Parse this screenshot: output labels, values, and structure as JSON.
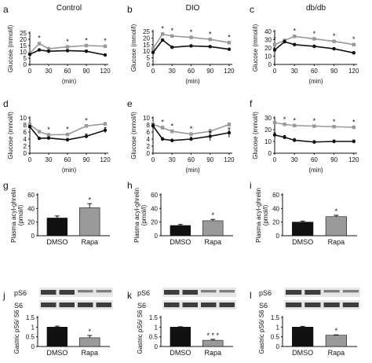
{
  "colors": {
    "black_series": "#111111",
    "gray_series": "#999999",
    "bar_black": "#111111",
    "bar_gray": "#9a9a9a",
    "axis": "#111111"
  },
  "chart_data": [
    {
      "panel": "a",
      "type": "line",
      "title": "Control",
      "ylabel": "Glucose (mmol/l)",
      "xlabel": "(min)",
      "x": [
        0,
        15,
        30,
        60,
        90,
        120
      ],
      "xticks": [
        0,
        30,
        60,
        90,
        120
      ],
      "xlim": [
        0,
        125
      ],
      "ylim": [
        0,
        25
      ],
      "yticks": [
        0,
        5,
        10,
        15,
        20,
        25
      ],
      "series": [
        {
          "color": "gray",
          "values": [
            9,
            16.5,
            12.5,
            14,
            15,
            14.5
          ],
          "err": [
            1,
            1.2,
            1,
            1,
            1,
            1
          ]
        },
        {
          "color": "black",
          "values": [
            8,
            11.5,
            10.5,
            11,
            10.5,
            7.5
          ],
          "err": [
            0.6,
            0.8,
            0.6,
            0.6,
            0.6,
            0.8
          ]
        }
      ],
      "stars": [
        {
          "x": 15,
          "label": "*"
        },
        {
          "x": 60,
          "label": "*"
        },
        {
          "x": 90,
          "label": "*"
        },
        {
          "x": 120,
          "label": "*"
        }
      ]
    },
    {
      "panel": "b",
      "type": "line",
      "title": "DIO",
      "ylabel": "Glucose (mmol/l)",
      "xlabel": "(min)",
      "x": [
        0,
        15,
        30,
        60,
        90,
        120
      ],
      "xticks": [
        0,
        30,
        60,
        90,
        120
      ],
      "xlim": [
        0,
        125
      ],
      "ylim": [
        0,
        25
      ],
      "yticks": [
        0,
        5,
        10,
        15,
        20,
        25
      ],
      "series": [
        {
          "color": "gray",
          "values": [
            12,
            23,
            21.5,
            20.5,
            19,
            16.5
          ],
          "err": [
            1,
            1,
            1,
            1,
            1,
            1
          ]
        },
        {
          "color": "black",
          "values": [
            9,
            18.5,
            13,
            14,
            13.5,
            11.5
          ],
          "err": [
            0.8,
            0.8,
            0.7,
            0.7,
            0.7,
            0.7
          ]
        }
      ],
      "stars": [
        {
          "x": 15,
          "label": "*"
        },
        {
          "x": 30,
          "label": "*"
        },
        {
          "x": 60,
          "label": "*"
        },
        {
          "x": 90,
          "label": "*"
        },
        {
          "x": 120,
          "label": "*"
        }
      ]
    },
    {
      "panel": "c",
      "type": "line",
      "title": "db/db",
      "ylabel": "Glucose (mmol/l)",
      "xlabel": "(min)",
      "x": [
        0,
        15,
        30,
        60,
        90,
        120
      ],
      "xticks": [
        0,
        30,
        60,
        90,
        120
      ],
      "xlim": [
        0,
        125
      ],
      "ylim": [
        0,
        40
      ],
      "yticks": [
        0,
        10,
        20,
        30,
        40
      ],
      "series": [
        {
          "color": "gray",
          "values": [
            24,
            29,
            34,
            31,
            28,
            24
          ],
          "err": [
            1.5,
            1.5,
            1.5,
            1.5,
            1.5,
            1.5
          ]
        },
        {
          "color": "black",
          "values": [
            17.5,
            27.5,
            24,
            22,
            19,
            14
          ],
          "err": [
            1.5,
            2,
            1.5,
            1.5,
            1.5,
            1.5
          ]
        }
      ],
      "stars": [
        {
          "x": 0,
          "label": "*"
        },
        {
          "x": 30,
          "label": "*"
        },
        {
          "x": 60,
          "label": "*"
        },
        {
          "x": 90,
          "label": "*"
        },
        {
          "x": 120,
          "label": "*"
        }
      ]
    },
    {
      "panel": "d",
      "type": "line",
      "title": "",
      "ylabel": "Glucose (mmol/l)",
      "xlabel": "(min)",
      "x": [
        0,
        15,
        30,
        60,
        90,
        120
      ],
      "xticks": [
        0,
        30,
        60,
        90,
        120
      ],
      "xlim": [
        0,
        125
      ],
      "ylim": [
        0,
        10
      ],
      "yticks": [
        0,
        2,
        4,
        6,
        8,
        10
      ],
      "series": [
        {
          "color": "gray",
          "values": [
            8.1,
            6.1,
            5.2,
            5.3,
            7.7,
            8.3
          ],
          "err": [
            0.4,
            0.4,
            0.4,
            0.4,
            0.4,
            0.4
          ]
        },
        {
          "color": "black",
          "values": [
            7.5,
            4.2,
            4.3,
            3.8,
            4.8,
            6.5
          ],
          "err": [
            0.4,
            0.3,
            0.3,
            0.4,
            0.6,
            0.7
          ]
        }
      ],
      "stars": [
        {
          "x": 30,
          "label": "*"
        },
        {
          "x": 60,
          "label": "*"
        },
        {
          "x": 90,
          "label": "*"
        }
      ]
    },
    {
      "panel": "e",
      "type": "line",
      "title": "",
      "ylabel": "Glucose (mmol/l)",
      "xlabel": "(min)",
      "x": [
        0,
        15,
        30,
        60,
        90,
        120
      ],
      "xticks": [
        0,
        30,
        60,
        90,
        120
      ],
      "xlim": [
        0,
        125
      ],
      "ylim": [
        0,
        10
      ],
      "yticks": [
        0,
        2,
        4,
        6,
        8,
        10
      ],
      "series": [
        {
          "color": "gray",
          "values": [
            8.2,
            7.2,
            6.2,
            5.4,
            6.2,
            8.1
          ],
          "err": [
            0.8,
            0.5,
            0.4,
            0.4,
            0.6,
            0.5
          ]
        },
        {
          "color": "black",
          "values": [
            7.7,
            4.0,
            3.6,
            4.0,
            4.8,
            5.8
          ],
          "err": [
            0.6,
            0.4,
            0.4,
            0.5,
            1.3,
            1.3
          ]
        }
      ],
      "stars": [
        {
          "x": 15,
          "label": "*"
        },
        {
          "x": 30,
          "label": "*"
        },
        {
          "x": 60,
          "label": "*"
        }
      ]
    },
    {
      "panel": "f",
      "type": "line",
      "title": "",
      "ylabel": "Glucose (mmol/l)",
      "xlabel": "(min)",
      "x": [
        0,
        15,
        30,
        60,
        90,
        120
      ],
      "xticks": [
        0,
        30,
        60,
        90,
        120
      ],
      "xlim": [
        0,
        125
      ],
      "ylim": [
        0,
        30
      ],
      "yticks": [
        0,
        10,
        20,
        30
      ],
      "series": [
        {
          "color": "gray",
          "values": [
            26,
            24.5,
            23.5,
            23,
            22.5,
            22
          ],
          "err": [
            1,
            1,
            1,
            1,
            1,
            1
          ]
        },
        {
          "color": "black",
          "values": [
            15.5,
            13.5,
            11,
            9.5,
            10,
            10
          ],
          "err": [
            1.8,
            1.5,
            1.5,
            1.2,
            1.2,
            1.2
          ]
        }
      ],
      "stars": [
        {
          "x": 15,
          "label": "*"
        },
        {
          "x": 30,
          "label": "*"
        },
        {
          "x": 60,
          "label": "*"
        },
        {
          "x": 90,
          "label": "*"
        },
        {
          "x": 120,
          "label": "*"
        }
      ]
    },
    {
      "panel": "g",
      "type": "bar",
      "ylabel": "Plasma acyl-ghrelin (pmol/l)",
      "categories": [
        "DMSO",
        "Rapa"
      ],
      "values": [
        26,
        41
      ],
      "err": [
        3,
        6
      ],
      "ylim": [
        0,
        60
      ],
      "yticks": [
        0,
        20,
        40,
        60
      ],
      "stars": [
        "",
        "*"
      ]
    },
    {
      "panel": "h",
      "type": "bar",
      "ylabel": "Plasma acyl-ghrelin (pmol/l)",
      "categories": [
        "DMSO",
        "Rapa"
      ],
      "values": [
        15,
        22
      ],
      "err": [
        1.5,
        2
      ],
      "ylim": [
        0,
        60
      ],
      "yticks": [
        0,
        20,
        40,
        60
      ],
      "stars": [
        "",
        "*"
      ]
    },
    {
      "panel": "i",
      "type": "bar",
      "ylabel": "Plasma acyl-ghrelin (pmol/l)",
      "categories": [
        "DMSO",
        "Rapa"
      ],
      "values": [
        20,
        28
      ],
      "err": [
        1.5,
        2
      ],
      "ylim": [
        0,
        60
      ],
      "yticks": [
        0,
        20,
        40,
        60
      ],
      "stars": [
        "",
        "*"
      ]
    },
    {
      "panel": "j",
      "type": "bar",
      "ylabel": "Gastric pS6/ S6",
      "categories": [
        "DMSO",
        "Rapa"
      ],
      "values": [
        1,
        0.45
      ],
      "err": [
        0.05,
        0.12
      ],
      "ylim": [
        0,
        1.5
      ],
      "yticks": [
        0,
        0.5,
        1,
        1.5
      ],
      "stars": [
        "",
        "*"
      ],
      "blot_labels": [
        "pS6",
        "S6"
      ]
    },
    {
      "panel": "k",
      "type": "bar",
      "ylabel": "Gastric pS6/ S6",
      "categories": [
        "DMSO",
        "Rapa"
      ],
      "values": [
        1,
        0.32
      ],
      "err": [
        0.02,
        0.05
      ],
      "ylim": [
        0,
        1.5
      ],
      "yticks": [
        0,
        0.5,
        1,
        1.5
      ],
      "stars": [
        "",
        "* * *"
      ],
      "blot_labels": [
        "pS6",
        "S6"
      ]
    },
    {
      "panel": "l",
      "type": "bar",
      "ylabel": "Gastric pS6/ S6",
      "categories": [
        "DMSO",
        "Rapa"
      ],
      "values": [
        1,
        0.58
      ],
      "err": [
        0.04,
        0.02
      ],
      "ylim": [
        0,
        1.5
      ],
      "yticks": [
        0,
        0.5,
        1,
        1.5
      ],
      "stars": [
        "",
        "*"
      ],
      "blot_labels": [
        "pS6",
        "S6"
      ]
    }
  ]
}
